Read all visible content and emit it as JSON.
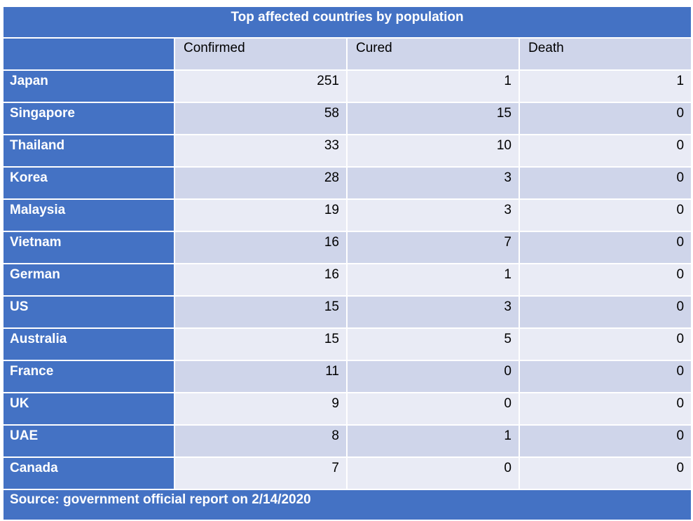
{
  "table": {
    "title": "Top affected countries by population",
    "columns": [
      "",
      "Confirmed",
      "Cured",
      "Death"
    ],
    "rows": [
      {
        "country": "Japan",
        "confirmed": "251",
        "cured": "1",
        "death": "1"
      },
      {
        "country": "Singapore",
        "confirmed": "58",
        "cured": "15",
        "death": "0"
      },
      {
        "country": "Thailand",
        "confirmed": "33",
        "cured": "10",
        "death": "0"
      },
      {
        "country": "Korea",
        "confirmed": "28",
        "cured": "3",
        "death": "0"
      },
      {
        "country": "Malaysia",
        "confirmed": "19",
        "cured": "3",
        "death": "0"
      },
      {
        "country": "Vietnam",
        "confirmed": "16",
        "cured": "7",
        "death": "0"
      },
      {
        "country": "German",
        "confirmed": "16",
        "cured": "1",
        "death": "0"
      },
      {
        "country": "US",
        "confirmed": "15",
        "cured": "3",
        "death": "0"
      },
      {
        "country": "Australia",
        "confirmed": "15",
        "cured": "5",
        "death": "0"
      },
      {
        "country": "France",
        "confirmed": "11",
        "cured": "0",
        "death": "0"
      },
      {
        "country": "UK",
        "confirmed": "9",
        "cured": "0",
        "death": "0"
      },
      {
        "country": "UAE",
        "confirmed": "8",
        "cured": "1",
        "death": "0"
      },
      {
        "country": "Canada",
        "confirmed": "7",
        "cured": "0",
        "death": "0"
      }
    ],
    "source": "Source: government official report on 2/14/2020"
  },
  "colors": {
    "header_blue": "#4472C4",
    "band_dark": "#CFD5EA",
    "band_light": "#E9EBF5",
    "text_white": "#ffffff"
  }
}
